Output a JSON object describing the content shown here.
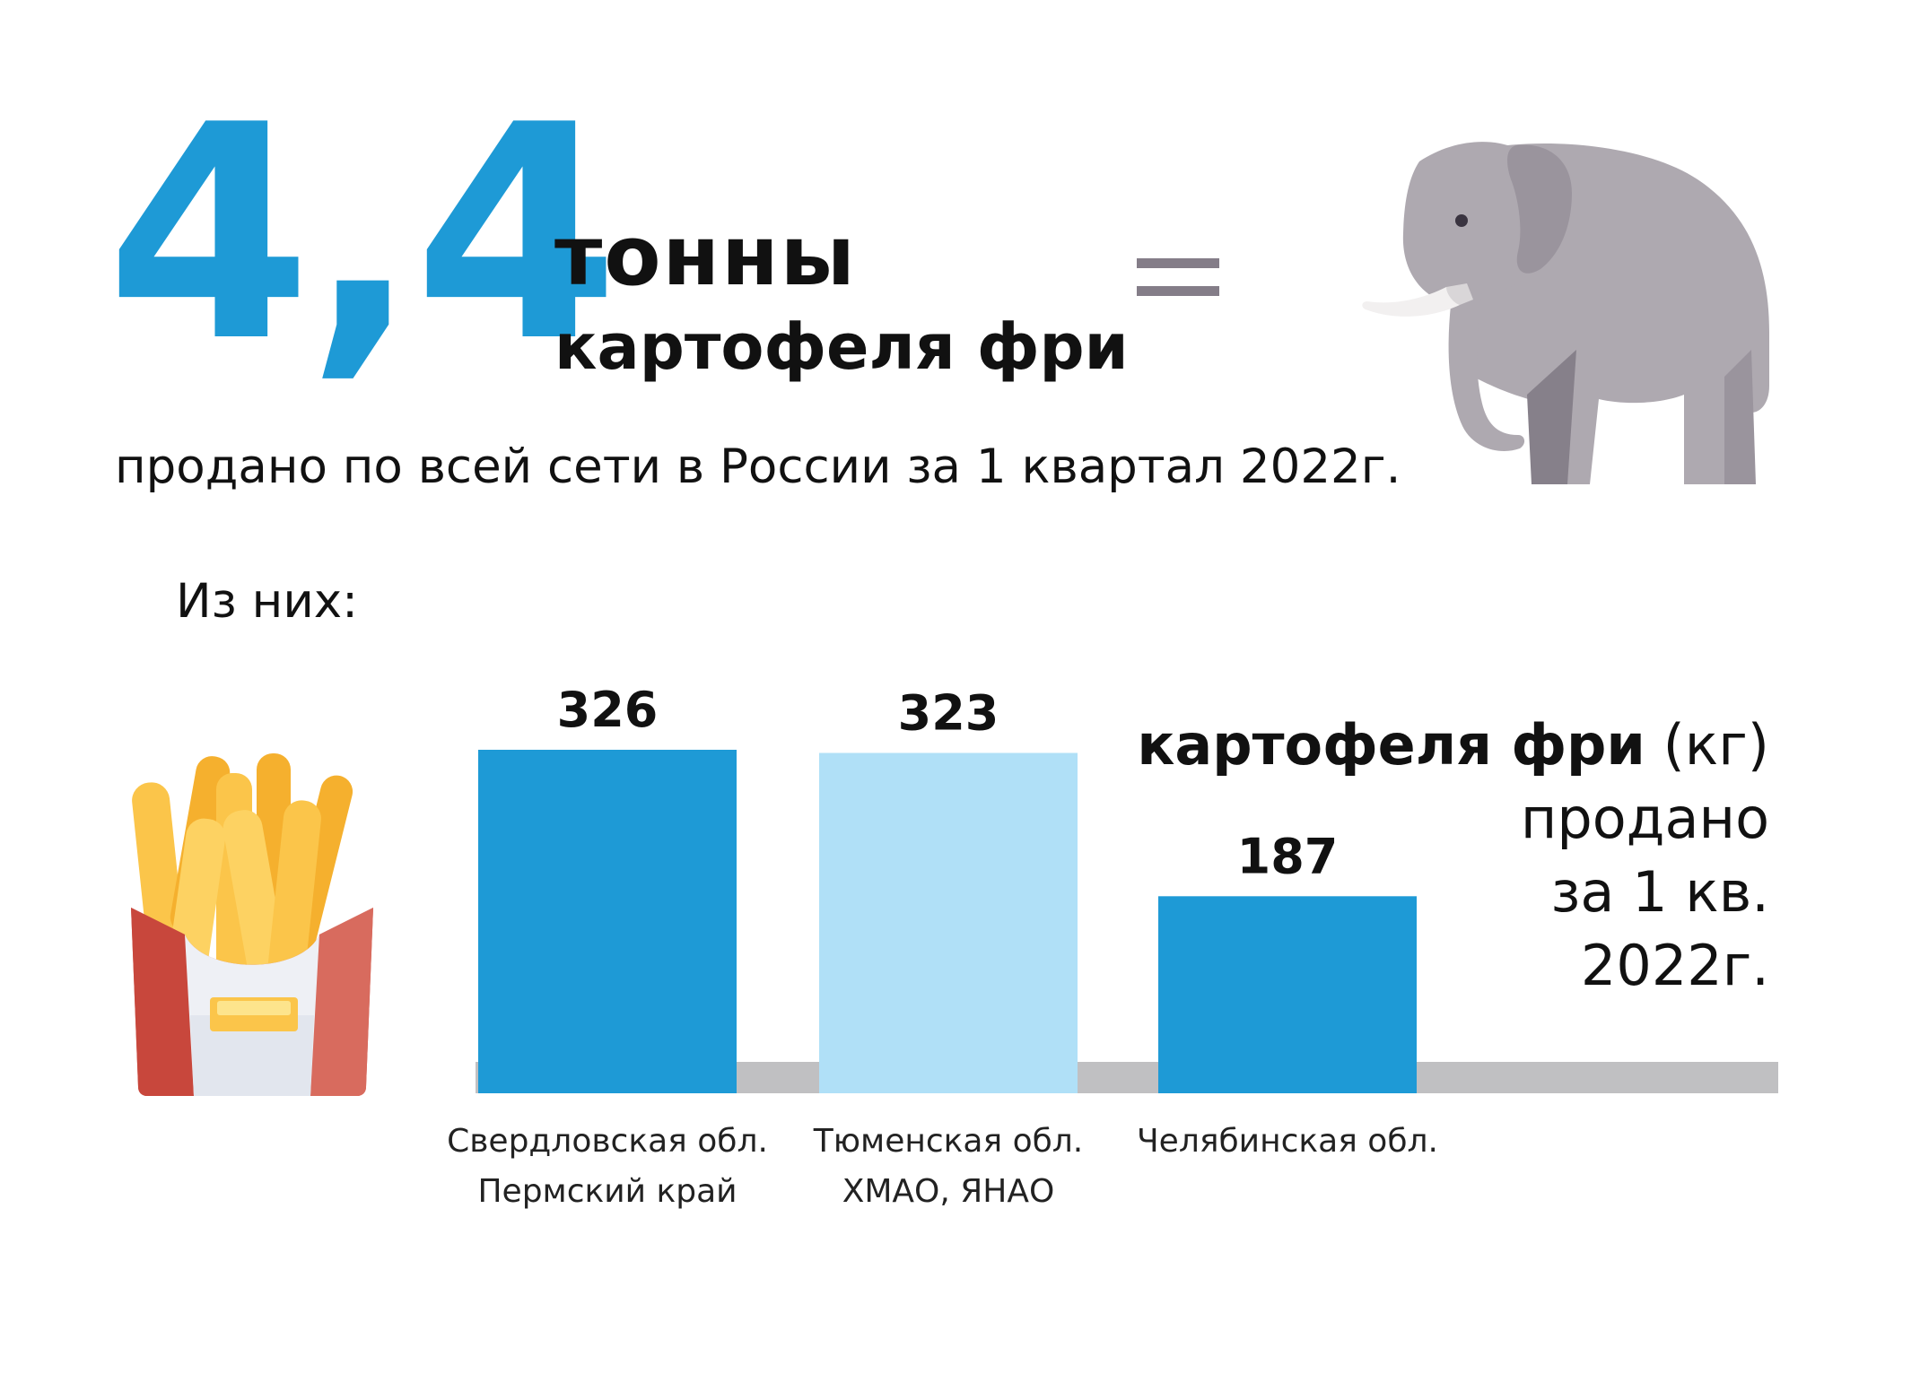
{
  "header": {
    "big_number": "4,4",
    "unit": "тонны",
    "product": "картофеля фри",
    "subtitle": "продано по всей сети в России за 1 квартал 2022г.",
    "of_them": "Из них:",
    "equals": "="
  },
  "caption": {
    "bold": "картофеля фри",
    "unit": "(кг)",
    "line2": "продано",
    "line3": "за 1 кв.",
    "line4": "2022г."
  },
  "colors": {
    "accent": "#1e9ad6",
    "light_accent": "#b0e0f7",
    "baseline": "#c0c0c2",
    "equals": "#847d88"
  },
  "icons": [
    "elephant-icon",
    "french-fries-icon"
  ],
  "chart_data": {
    "type": "bar",
    "categories": [
      [
        "Свердловская обл.",
        "Пермский край"
      ],
      [
        "Тюменская обл.",
        "ХМАО, ЯНАО"
      ],
      [
        "Челябинская обл."
      ]
    ],
    "values": [
      326,
      323,
      187
    ],
    "value_labels": [
      "326",
      "323",
      "187"
    ],
    "bar_colors": [
      "#1e9ad6",
      "#b0e0f7",
      "#1e9ad6"
    ],
    "ylim": [
      0,
      326
    ]
  }
}
